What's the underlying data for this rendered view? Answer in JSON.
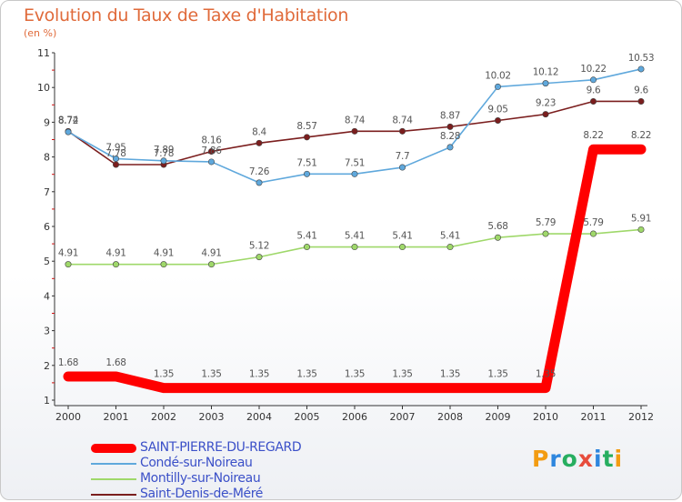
{
  "title": "Evolution du Taux de Taxe d'Habitation",
  "subtitle": "(en %)",
  "brand": {
    "text": "Proxiti",
    "colors": [
      "#f39c12",
      "#2e86de",
      "#27ae60",
      "#e74c3c",
      "#2e86de",
      "#27ae60",
      "#f39c12"
    ]
  },
  "chart_data": {
    "type": "line",
    "x": [
      "2000",
      "2001",
      "2002",
      "2003",
      "2004",
      "2005",
      "2006",
      "2007",
      "2008",
      "2009",
      "2010",
      "2011",
      "2012"
    ],
    "ylim": [
      1,
      11
    ],
    "yticks": [
      "1",
      "2",
      "3",
      "4",
      "5",
      "6",
      "7",
      "8",
      "9",
      "10",
      "11"
    ],
    "grid": false,
    "legend": "bottom-left",
    "series": [
      {
        "name": "Saint-Denis-de-Méré",
        "color": "#7b1e1e",
        "labels": [
          "8.74",
          "7.78",
          "7.78",
          "8.16",
          "8.4",
          "8.57",
          "8.74",
          "8.74",
          "8.87",
          "9.05",
          "9.23",
          "9.6",
          "9.6"
        ],
        "values": [
          8.74,
          7.78,
          7.78,
          8.16,
          8.4,
          8.57,
          8.74,
          8.74,
          8.87,
          9.05,
          9.23,
          9.6,
          9.6
        ]
      },
      {
        "name": "Condé-sur-Noireau",
        "color": "#5fa8dc",
        "labels": [
          "8.72",
          "7.95",
          "7.89",
          "7.86",
          "7.26",
          "7.51",
          "7.51",
          "7.7",
          "8.28",
          "10.02",
          "10.12",
          "10.22",
          "10.53"
        ],
        "values": [
          8.72,
          7.95,
          7.89,
          7.86,
          7.26,
          7.51,
          7.51,
          7.7,
          8.28,
          10.02,
          10.12,
          10.22,
          10.53
        ]
      },
      {
        "name": "Montilly-sur-Noireau",
        "color": "#9fd86a",
        "labels": [
          "4.91",
          "4.91",
          "4.91",
          "4.91",
          "5.12",
          "5.41",
          "5.41",
          "5.41",
          "5.41",
          "5.68",
          "5.79",
          "5.79",
          "5.91"
        ],
        "values": [
          4.91,
          4.91,
          4.91,
          4.91,
          5.12,
          5.41,
          5.41,
          5.41,
          5.41,
          5.68,
          5.79,
          5.79,
          5.91
        ]
      },
      {
        "name": "SAINT-PIERRE-DU-REGARD",
        "color": "#ff0000",
        "highlight": true,
        "labels": [
          "1.68",
          "1.68",
          "1.35",
          "1.35",
          "1.35",
          "1.35",
          "1.35",
          "1.35",
          "1.35",
          "1.35",
          "1.35",
          "8.22",
          "8.22"
        ],
        "values": [
          1.68,
          1.68,
          1.35,
          1.35,
          1.35,
          1.35,
          1.35,
          1.35,
          1.35,
          1.35,
          1.35,
          8.22,
          8.22
        ]
      }
    ],
    "legend_order": [
      "SAINT-PIERRE-DU-REGARD",
      "Condé-sur-Noireau",
      "Montilly-sur-Noireau",
      "Saint-Denis-de-Méré"
    ]
  }
}
